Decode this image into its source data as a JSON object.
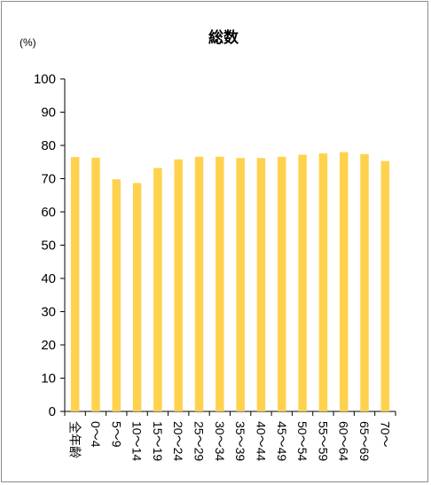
{
  "chart_data": {
    "type": "bar",
    "title": "総数",
    "ylabel": "(%)",
    "xlabel": "",
    "ylim": [
      0,
      100
    ],
    "yticks": [
      0,
      10,
      20,
      30,
      40,
      50,
      60,
      70,
      80,
      90,
      100
    ],
    "grid": false,
    "legend": "none",
    "bar_color": "#ffd24d",
    "categories": [
      "全年齢",
      "0～4",
      "5～9",
      "10～14",
      "15～19",
      "20～24",
      "25～29",
      "30～34",
      "35～39",
      "40～44",
      "45～49",
      "50～54",
      "55～59",
      "60～64",
      "65～69",
      "70～"
    ],
    "values": [
      76.5,
      76.3,
      69.8,
      68.7,
      73.2,
      75.8,
      76.6,
      76.6,
      76.2,
      76.2,
      76.6,
      77.2,
      77.6,
      78.0,
      77.4,
      75.3
    ]
  }
}
